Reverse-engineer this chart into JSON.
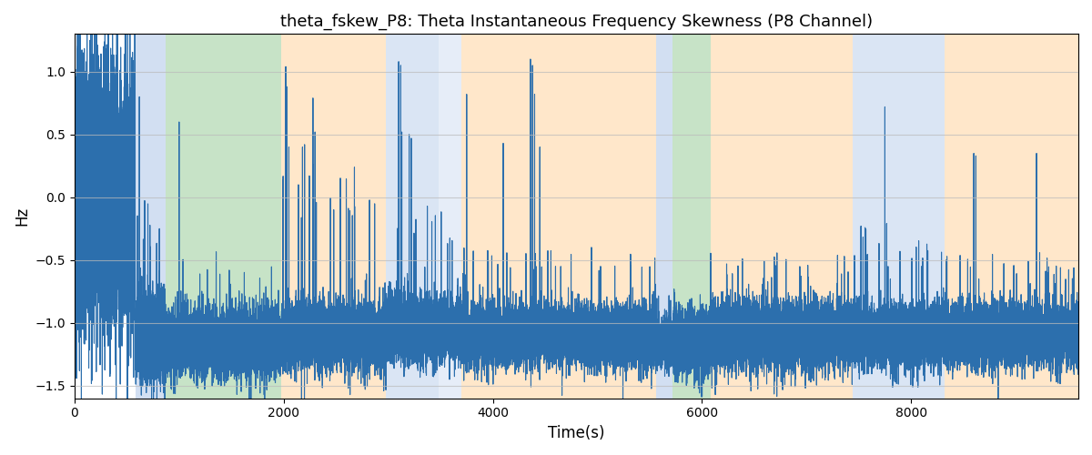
{
  "title": "theta_fskew_P8: Theta Instantaneous Frequency Skewness (P8 Channel)",
  "xlabel": "Time(s)",
  "ylabel": "Hz",
  "xlim": [
    0,
    9600
  ],
  "ylim": [
    -1.6,
    1.3
  ],
  "yticks": [
    -1.5,
    -1.0,
    -0.5,
    0.0,
    0.5,
    1.0
  ],
  "xticks": [
    0,
    2000,
    4000,
    6000,
    8000
  ],
  "figsize": [
    12,
    5
  ],
  "dpi": 100,
  "line_color": "#2c6fad",
  "line_width": 0.8,
  "background_regions": [
    {
      "xmin": 580,
      "xmax": 870,
      "color": "#aec6e8",
      "alpha": 0.55
    },
    {
      "xmin": 870,
      "xmax": 1980,
      "color": "#90c990",
      "alpha": 0.5
    },
    {
      "xmin": 1980,
      "xmax": 2980,
      "color": "#ffd8a8",
      "alpha": 0.6
    },
    {
      "xmin": 2980,
      "xmax": 3480,
      "color": "#aec6e8",
      "alpha": 0.45
    },
    {
      "xmin": 3480,
      "xmax": 3700,
      "color": "#aec6e8",
      "alpha": 0.3
    },
    {
      "xmin": 3700,
      "xmax": 5560,
      "color": "#ffd8a8",
      "alpha": 0.6
    },
    {
      "xmin": 5560,
      "xmax": 5720,
      "color": "#aec6e8",
      "alpha": 0.55
    },
    {
      "xmin": 5720,
      "xmax": 6080,
      "color": "#90c990",
      "alpha": 0.5
    },
    {
      "xmin": 6080,
      "xmax": 7440,
      "color": "#ffd8a8",
      "alpha": 0.6
    },
    {
      "xmin": 7440,
      "xmax": 8320,
      "color": "#aec6e8",
      "alpha": 0.45
    },
    {
      "xmin": 8320,
      "xmax": 9600,
      "color": "#ffd8a8",
      "alpha": 0.6
    }
  ],
  "grid_color": "#bbbbbb",
  "grid_alpha": 0.7,
  "seed": 42
}
